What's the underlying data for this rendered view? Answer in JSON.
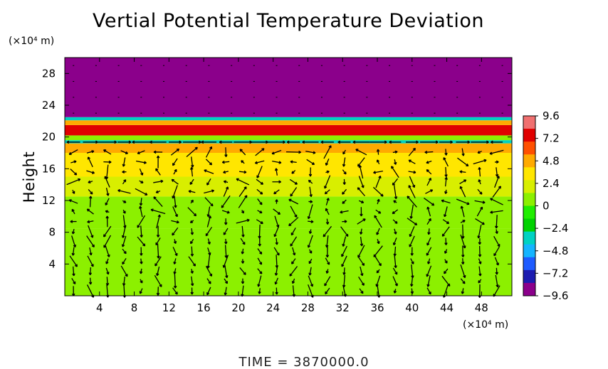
{
  "chart_data": {
    "type": "heatmap",
    "title": "Vertial Potential Temperature Deviation",
    "ylabel": "Height",
    "x_unit": "(×10⁴ m)",
    "y_unit": "(×10⁴ m)",
    "xlim": [
      0,
      51.5
    ],
    "ylim": [
      0,
      30
    ],
    "x_ticks": [
      "4",
      "8",
      "12",
      "16",
      "20",
      "24",
      "28",
      "32",
      "36",
      "40",
      "44",
      "48"
    ],
    "y_ticks": [
      "4",
      "8",
      "12",
      "16",
      "20",
      "24",
      "28"
    ],
    "x_tick_values": [
      4,
      8,
      12,
      16,
      20,
      24,
      28,
      32,
      36,
      40,
      44,
      48
    ],
    "y_tick_values": [
      4,
      8,
      12,
      16,
      20,
      24,
      28
    ],
    "colorbar": {
      "range": [
        -9.6,
        9.6
      ],
      "ticks": [
        "9.6",
        "7.2",
        "4.8",
        "2.4",
        "0",
        "−2.4",
        "−4.8",
        "−7.2",
        "−9.6"
      ],
      "tick_values": [
        9.6,
        7.2,
        4.8,
        2.4,
        0,
        -2.4,
        -4.8,
        -7.2,
        -9.6
      ],
      "colors": [
        "#8b008b",
        "#1c1cb0",
        "#1e5bff",
        "#15b4ff",
        "#00d2c2",
        "#00d200",
        "#20ee00",
        "#8cf000",
        "#d8ee00",
        "#ffe600",
        "#ffaa00",
        "#ff5000",
        "#e00000",
        "#f07070"
      ]
    },
    "height_profile": [
      {
        "y0": 0,
        "y1": 8.5,
        "value": 0.3
      },
      {
        "y0": 8.5,
        "y1": 12.5,
        "value": 1.2
      },
      {
        "y0": 12.5,
        "y1": 15,
        "value": 2.4
      },
      {
        "y0": 15,
        "y1": 18,
        "value": 3.6
      },
      {
        "y0": 18,
        "y1": 19.2,
        "value": 4.8
      },
      {
        "y0": 19.2,
        "y1": 19.6,
        "value": -3.6
      },
      {
        "y0": 19.6,
        "y1": 20.2,
        "value": 1.2
      },
      {
        "y0": 20.2,
        "y1": 21.5,
        "value": 7.2
      },
      {
        "y0": 21.5,
        "y1": 22.1,
        "value": 4.8
      },
      {
        "y0": 22.1,
        "y1": 22.5,
        "value": -3.6
      },
      {
        "y0": 22.5,
        "y1": 30,
        "value": -9.6
      }
    ],
    "vector_field": "wind arrows overlaid (u, w)"
  },
  "footer": {
    "time_label": "TIME  =  3870000.0"
  }
}
